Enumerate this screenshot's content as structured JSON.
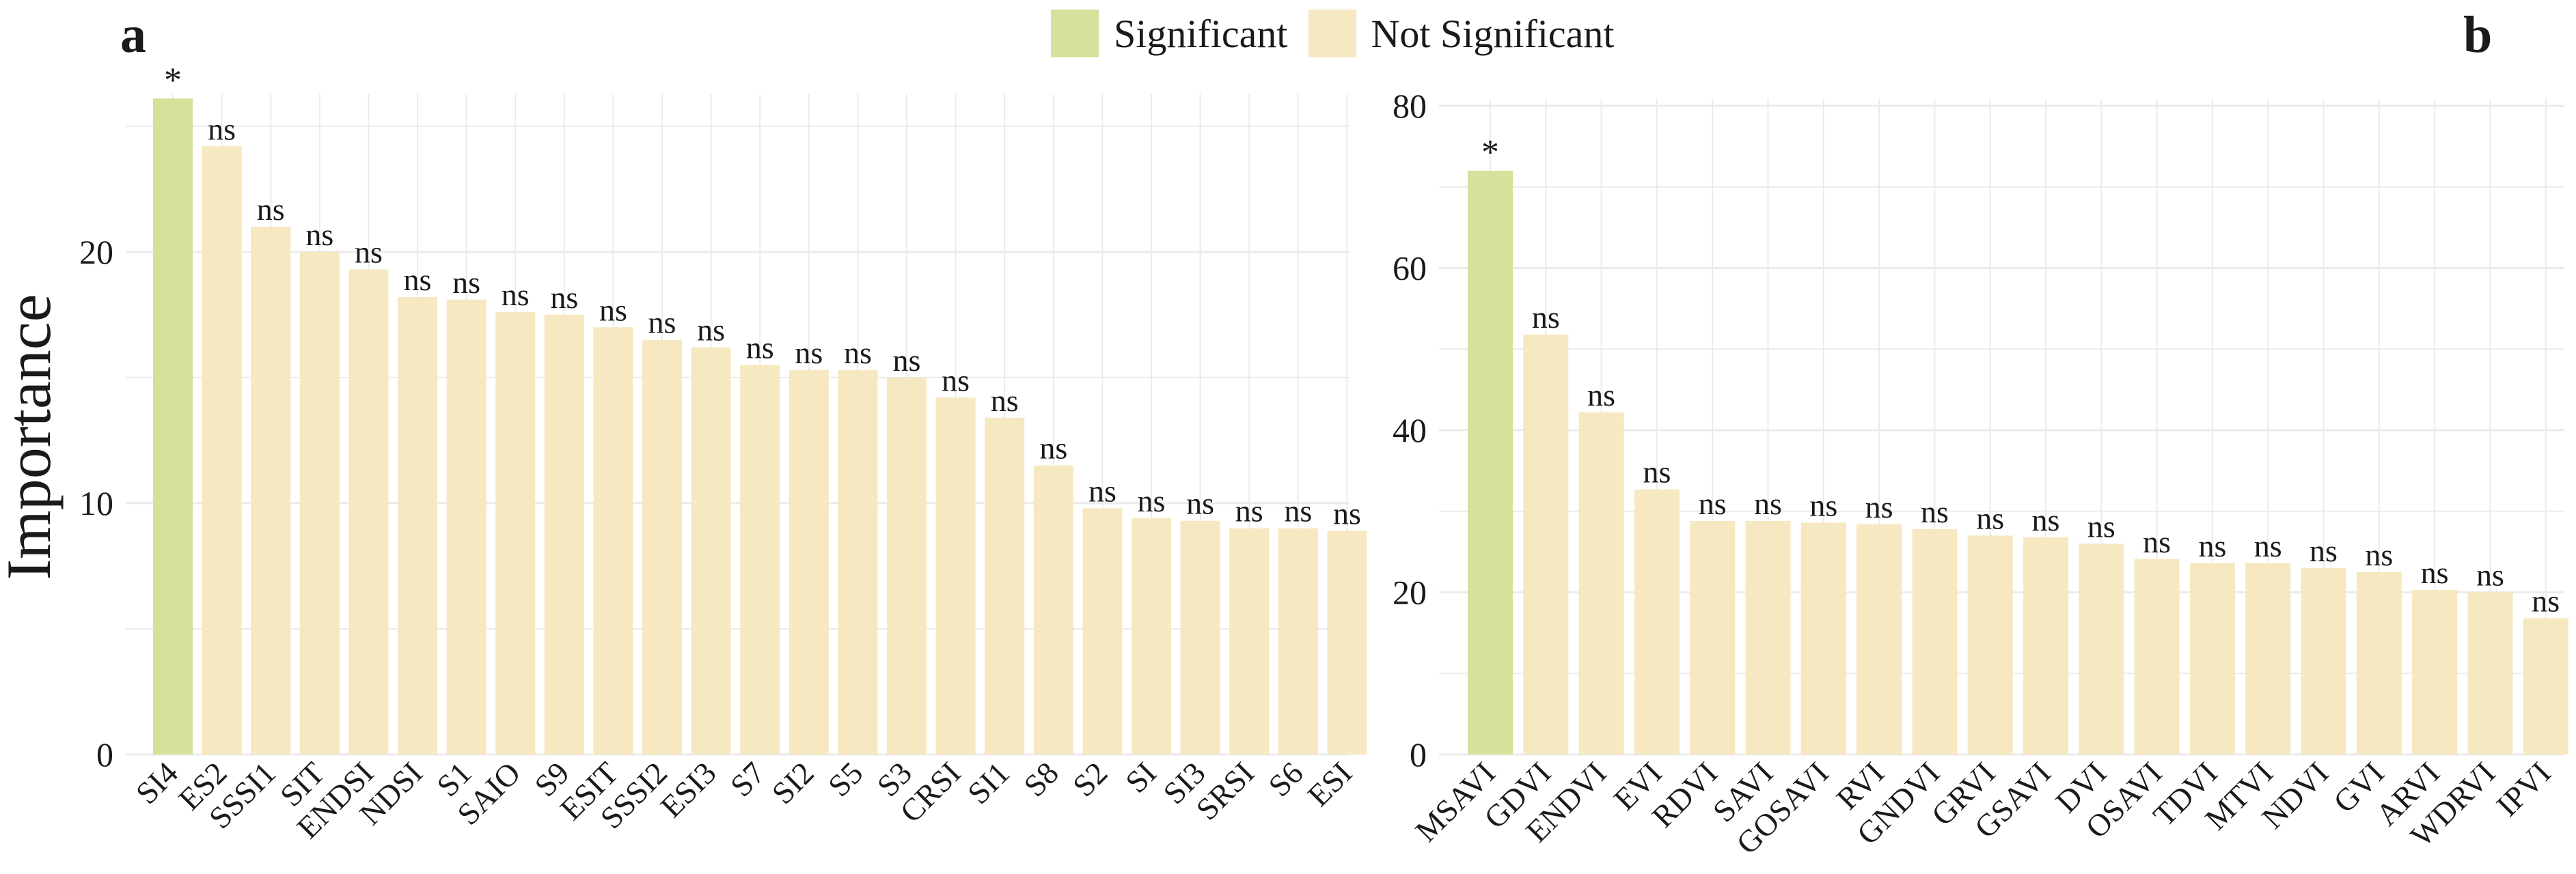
{
  "legend": {
    "significant_label": "Significant",
    "not_significant_label": "Not Significant"
  },
  "colors": {
    "significant": "#d5e29c",
    "not_significant": "#f6e8c0",
    "grid": "#ebebeb",
    "text": "#1a1a1a"
  },
  "ylabel": "Importance",
  "chart_data": [
    {
      "panel": "a",
      "type": "bar",
      "ylabel": "Importance",
      "ylim": [
        0,
        26
      ],
      "yticks": [
        0,
        10,
        20
      ],
      "grid": true,
      "categories": [
        "SI4",
        "ES2",
        "SSSI1",
        "SIT",
        "ENDSI",
        "NDSI",
        "S1",
        "SAIO",
        "S9",
        "ESIT",
        "SSSI2",
        "ESI3",
        "S7",
        "SI2",
        "S5",
        "S3",
        "CRSI",
        "SI1",
        "S8",
        "S2",
        "SI",
        "SI3",
        "SRSI",
        "S6",
        "ESI"
      ],
      "values": [
        26.1,
        24.2,
        21.0,
        20.0,
        19.3,
        18.2,
        18.1,
        17.6,
        17.5,
        17.0,
        16.5,
        16.2,
        15.5,
        15.3,
        15.3,
        15.0,
        14.2,
        13.4,
        11.5,
        9.8,
        9.4,
        9.3,
        9.0,
        9.0,
        8.9
      ],
      "labels": [
        "*",
        "ns",
        "ns",
        "ns",
        "ns",
        "ns",
        "ns",
        "ns",
        "ns",
        "ns",
        "ns",
        "ns",
        "ns",
        "ns",
        "ns",
        "ns",
        "ns",
        "ns",
        "ns",
        "ns",
        "ns",
        "ns",
        "ns",
        "ns",
        "ns"
      ],
      "significant": [
        true,
        false,
        false,
        false,
        false,
        false,
        false,
        false,
        false,
        false,
        false,
        false,
        false,
        false,
        false,
        false,
        false,
        false,
        false,
        false,
        false,
        false,
        false,
        false,
        false
      ]
    },
    {
      "panel": "b",
      "type": "bar",
      "ylim": [
        0,
        80
      ],
      "yticks": [
        0,
        20,
        40,
        60,
        80
      ],
      "grid": true,
      "categories": [
        "MSAVI",
        "GDVI",
        "ENDVI",
        "EVI",
        "RDVI",
        "SAVI",
        "GOSAVI",
        "RVI",
        "GNDVI",
        "GRVI",
        "GSAVI",
        "DVI",
        "OSAVI",
        "TDVI",
        "MTVI",
        "NDVI",
        "GVI",
        "ARVI",
        "WDRVI",
        "IPVI"
      ],
      "values": [
        72.0,
        51.8,
        42.2,
        32.7,
        28.8,
        28.8,
        28.6,
        28.4,
        27.8,
        27.0,
        26.8,
        26.0,
        24.1,
        23.6,
        23.6,
        23.0,
        22.5,
        20.3,
        20.0,
        16.8
      ],
      "labels": [
        "*",
        "ns",
        "ns",
        "ns",
        "ns",
        "ns",
        "ns",
        "ns",
        "ns",
        "ns",
        "ns",
        "ns",
        "ns",
        "ns",
        "ns",
        "ns",
        "ns",
        "ns",
        "ns",
        "ns"
      ],
      "significant": [
        true,
        false,
        false,
        false,
        false,
        false,
        false,
        false,
        false,
        false,
        false,
        false,
        false,
        false,
        false,
        false,
        false,
        false,
        false,
        false
      ]
    }
  ]
}
